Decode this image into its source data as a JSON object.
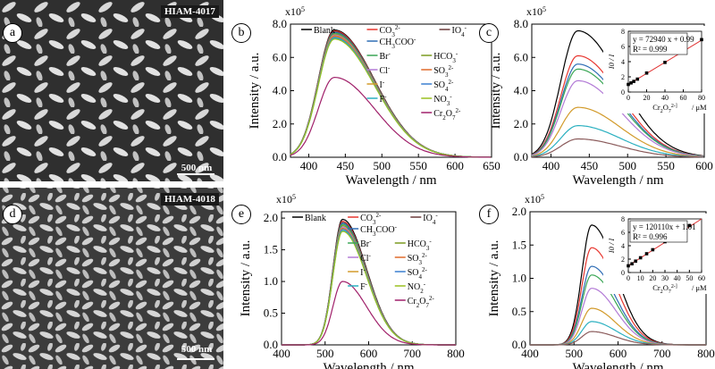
{
  "panels": {
    "a": {
      "letter": "a",
      "sample": "HIAM-4017",
      "scalebar": "500 nm"
    },
    "d": {
      "letter": "d",
      "sample": "HIAM-4018",
      "scalebar": "500 nm"
    },
    "b": {
      "letter": "b"
    },
    "c": {
      "letter": "c"
    },
    "e": {
      "letter": "e"
    },
    "f": {
      "letter": "f"
    }
  },
  "chart_data": [
    {
      "id": "b",
      "type": "line",
      "xlabel": "Wavelength / nm",
      "ylabel": "Intensity / a.u.",
      "multiplier": "x10^5",
      "xlim": [
        375,
        650
      ],
      "ylim": [
        0,
        8.0
      ],
      "xticks": [
        400,
        450,
        500,
        550,
        600,
        650
      ],
      "yticks": [
        0.0,
        2.0,
        4.0,
        6.0,
        8.0
      ],
      "peak": 435,
      "legend": [
        "Blank",
        "CO3 2-",
        "IO4 -",
        "CH3COO-",
        "Br-",
        "HCO3 -",
        "Cl-",
        "SO3 2-",
        "I-",
        "SO4 2-",
        "F-",
        "NO3 -",
        "Cr2O7 2-"
      ],
      "series": [
        {
          "name": "Blank",
          "color": "#000000",
          "peak": 7.65
        },
        {
          "name": "CO3 2-",
          "color": "#e8362f",
          "peak": 7.6
        },
        {
          "name": "IO4 -",
          "color": "#6a3b3b",
          "peak": 7.55
        },
        {
          "name": "CH3COO-",
          "color": "#2f6db5",
          "peak": 7.5
        },
        {
          "name": "Br-",
          "color": "#3aa655",
          "peak": 7.45
        },
        {
          "name": "HCO3 -",
          "color": "#7a9a20",
          "peak": 7.4
        },
        {
          "name": "Cl-",
          "color": "#b27ad6",
          "peak": 7.35
        },
        {
          "name": "SO3 2-",
          "color": "#e06a2a",
          "peak": 7.3
        },
        {
          "name": "I-",
          "color": "#d29a2a",
          "peak": 7.25
        },
        {
          "name": "SO4 2-",
          "color": "#3a7fd0",
          "peak": 7.2
        },
        {
          "name": "F-",
          "color": "#2ab0c0",
          "peak": 7.15
        },
        {
          "name": "NO3 -",
          "color": "#9ac020",
          "peak": 7.1
        },
        {
          "name": "Cr2O7 2-",
          "color": "#a0206a",
          "peak": 4.8
        }
      ]
    },
    {
      "id": "c",
      "type": "line",
      "xlabel": "Wavelength / nm",
      "ylabel": "Intensity / a.u.",
      "multiplier": "x10^5",
      "xlim": [
        375,
        600
      ],
      "ylim": [
        0,
        8.0
      ],
      "xticks": [
        400,
        450,
        500,
        550,
        600
      ],
      "yticks": [
        0.0,
        2.0,
        4.0,
        6.0,
        8.0
      ],
      "peak": 435,
      "series": [
        {
          "color": "#000000",
          "peak": 7.6
        },
        {
          "color": "#e8362f",
          "peak": 6.1
        },
        {
          "color": "#2f6db5",
          "peak": 5.6
        },
        {
          "color": "#3aa655",
          "peak": 5.3
        },
        {
          "color": "#b27ad6",
          "peak": 4.6
        },
        {
          "color": "#d29a2a",
          "peak": 3.0
        },
        {
          "color": "#2ab0c0",
          "peak": 1.9
        },
        {
          "color": "#8a5a5a",
          "peak": 1.1
        }
      ],
      "inset": {
        "type": "scatter",
        "equation": "y = 72940 x + 0.99",
        "r2": "R² = 0.999",
        "xlabel": "[Cr2O7 2-] / μM",
        "ylabel": "I0 / I",
        "xlim": [
          0,
          80
        ],
        "ylim": [
          0,
          8
        ],
        "xticks": [
          0,
          20,
          40,
          60,
          80
        ],
        "yticks": [
          0,
          2,
          4,
          6,
          8
        ],
        "points": [
          [
            0,
            1
          ],
          [
            3,
            1.2
          ],
          [
            6,
            1.4
          ],
          [
            10,
            1.7
          ],
          [
            20,
            2.5
          ],
          [
            40,
            3.9
          ],
          [
            80,
            6.9
          ]
        ],
        "fit": {
          "slope": 0.07294,
          "intercept": 0.99
        }
      }
    },
    {
      "id": "e",
      "type": "line",
      "xlabel": "Wavelength / nm",
      "ylabel": "Intensity / a.u.",
      "multiplier": "x10^5",
      "xlim": [
        400,
        800
      ],
      "ylim": [
        0,
        2.1
      ],
      "xticks": [
        400,
        500,
        600,
        700,
        800
      ],
      "yticks": [
        0.0,
        0.5,
        1.0,
        1.5,
        2.0
      ],
      "peak": 540,
      "legend": [
        "Blank",
        "CO3 2-",
        "IO4 -",
        "CH3COO-",
        "Br-",
        "HCO3 -",
        "Cl-",
        "SO3 2-",
        "I-",
        "SO4 2-",
        "F-",
        "NO2 -",
        "Cr2O7 2-"
      ],
      "series": [
        {
          "name": "Blank",
          "color": "#000000",
          "peak": 1.98
        },
        {
          "name": "CO3 2-",
          "color": "#e8362f",
          "peak": 1.95
        },
        {
          "name": "IO4 -",
          "color": "#6a3b3b",
          "peak": 1.93
        },
        {
          "name": "CH3COO-",
          "color": "#2f6db5",
          "peak": 1.92
        },
        {
          "name": "Br-",
          "color": "#3aa655",
          "peak": 1.9
        },
        {
          "name": "HCO3 -",
          "color": "#7a9a20",
          "peak": 1.88
        },
        {
          "name": "Cl-",
          "color": "#b27ad6",
          "peak": 1.86
        },
        {
          "name": "SO3 2-",
          "color": "#e06a2a",
          "peak": 1.84
        },
        {
          "name": "I-",
          "color": "#d29a2a",
          "peak": 1.83
        },
        {
          "name": "SO4 2-",
          "color": "#3a7fd0",
          "peak": 1.82
        },
        {
          "name": "F-",
          "color": "#2ab0c0",
          "peak": 1.8
        },
        {
          "name": "NO2 -",
          "color": "#9ac020",
          "peak": 1.79
        },
        {
          "name": "Cr2O7 2-",
          "color": "#a0206a",
          "peak": 1.0
        }
      ]
    },
    {
      "id": "f",
      "type": "line",
      "xlabel": "Wavelength / nm",
      "ylabel": "Intensity / a.u.",
      "multiplier": "x10^5",
      "xlim": [
        400,
        800
      ],
      "ylim": [
        0,
        2.0
      ],
      "xticks": [
        400,
        500,
        600,
        700,
        800
      ],
      "yticks": [
        0.0,
        0.5,
        1.0,
        1.5,
        2.0
      ],
      "peak": 540,
      "series": [
        {
          "color": "#000000",
          "peak": 1.8
        },
        {
          "color": "#e8362f",
          "peak": 1.46
        },
        {
          "color": "#2f6db5",
          "peak": 1.18
        },
        {
          "color": "#3aa655",
          "peak": 1.05
        },
        {
          "color": "#b27ad6",
          "peak": 0.85
        },
        {
          "color": "#d29a2a",
          "peak": 0.55
        },
        {
          "color": "#2ab0c0",
          "peak": 0.35
        },
        {
          "color": "#8a5a5a",
          "peak": 0.2
        }
      ],
      "inset": {
        "type": "scatter",
        "equation": "y = 120110x + 1.01",
        "r2": "R² = 0.996",
        "xlabel": "[Cr2O7 2-] / μM",
        "ylabel": "I0 / I",
        "xlim": [
          0,
          60
        ],
        "ylim": [
          0,
          8
        ],
        "xticks": [
          0,
          10,
          20,
          30,
          40,
          50,
          60
        ],
        "yticks": [
          0,
          2,
          4,
          6,
          8
        ],
        "points": [
          [
            0,
            1
          ],
          [
            3,
            1.3
          ],
          [
            6,
            1.7
          ],
          [
            10,
            2.2
          ],
          [
            15,
            2.8
          ],
          [
            20,
            3.4
          ],
          [
            30,
            4.6
          ],
          [
            40,
            5.7
          ],
          [
            50,
            7.0
          ]
        ],
        "fit": {
          "slope": 0.12011,
          "intercept": 1.01
        }
      }
    }
  ]
}
